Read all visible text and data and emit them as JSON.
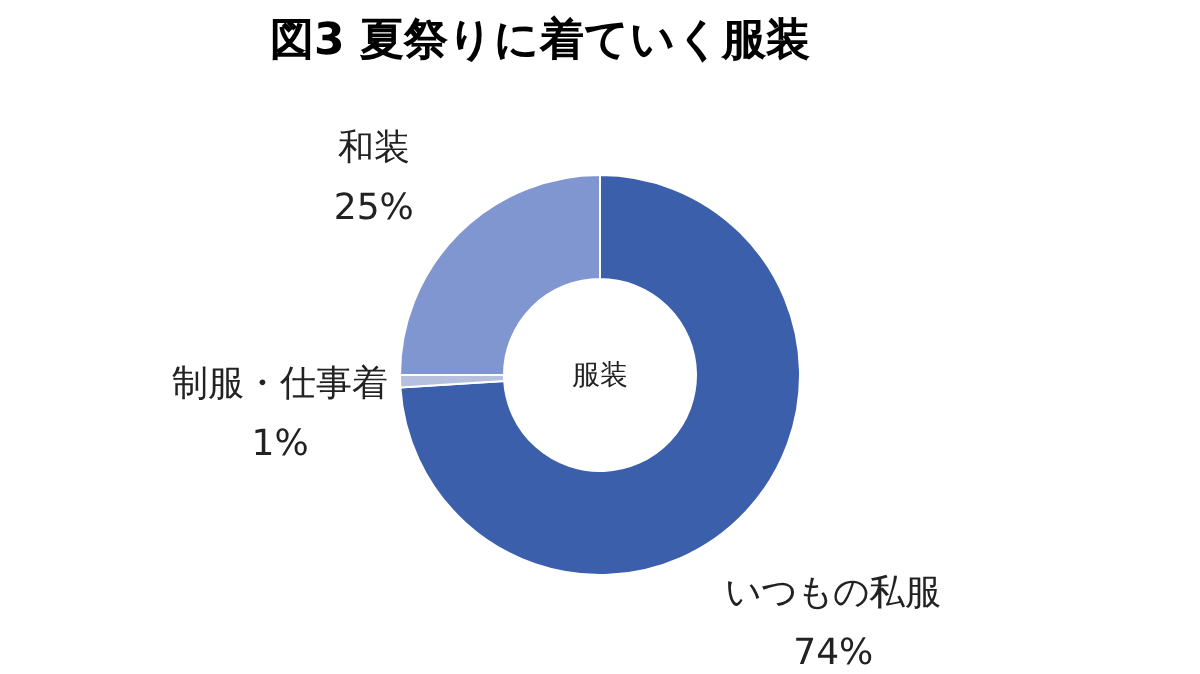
{
  "chart_data": {
    "type": "donut",
    "title": "図3 夏祭りに着ていく服装",
    "categories": [
      "いつもの私服",
      "制服・仕事着",
      "和装"
    ],
    "values": [
      74,
      1,
      25
    ],
    "value_labels": [
      "74%",
      "1%",
      "25%"
    ],
    "colors": [
      "#3b5fab",
      "#b4c0de",
      "#7f96d0"
    ],
    "annotations": [
      "服装"
    ]
  }
}
